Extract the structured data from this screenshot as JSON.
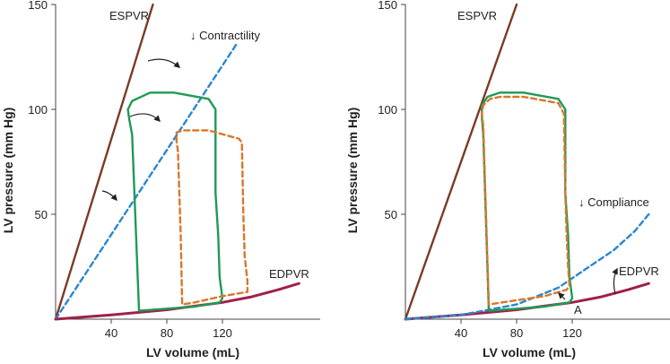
{
  "chart_data": [
    {
      "type": "line",
      "xlabel": "LV volume (mL)",
      "ylabel": "LV pressure (mm Hg)",
      "xticks": [
        40,
        80,
        120
      ],
      "yticks": [
        50,
        100,
        150
      ],
      "xlim": [
        0,
        190
      ],
      "ylim": [
        0,
        150
      ],
      "annotations": [
        "ESPVR",
        "EDPVR",
        "↓ Contractility"
      ],
      "colors": {
        "espvr": "#7a3b28",
        "edpvr": "#a0204a",
        "normal_loop": "#1f9a55",
        "altered_loop": "#d9772a",
        "shifted_relation": "#2a86cf"
      },
      "series": [
        {
          "style": "solid",
          "color_key": "espvr",
          "x": [
            0,
            70
          ],
          "y": [
            0,
            150
          ]
        },
        {
          "style": "dashed",
          "color_key": "shifted_relation",
          "x": [
            0,
            130
          ],
          "y": [
            0,
            131
          ]
        },
        {
          "style": "solid",
          "color_key": "edpvr",
          "x": [
            0,
            40,
            80,
            120,
            140,
            160,
            175
          ],
          "y": [
            0,
            2,
            4.5,
            8,
            10.5,
            14,
            17
          ]
        },
        {
          "style": "solid",
          "color_key": "normal_loop",
          "x": [
            55,
            53,
            52,
            55,
            68,
            85,
            110,
            115,
            115,
            117,
            118,
            120,
            118,
            100,
            80,
            60,
            55
          ],
          "y": [
            88,
            95,
            100,
            104,
            108,
            108,
            105,
            100,
            60,
            40,
            20,
            10,
            8,
            6,
            5,
            4,
            88
          ]
        },
        {
          "style": "dashed",
          "color_key": "altered_loop",
          "x": [
            88,
            87,
            87,
            92,
            110,
            132,
            134,
            135,
            136,
            138,
            138,
            120,
            100,
            91,
            90,
            88
          ],
          "y": [
            80,
            85,
            89,
            90,
            90,
            86,
            84,
            50,
            30,
            18,
            13,
            11,
            8,
            7,
            40,
            80
          ]
        }
      ]
    },
    {
      "type": "line",
      "xlabel": "LV volume (mL)",
      "ylabel": "LV pressure (mm Hg)",
      "xticks": [
        40,
        80,
        120
      ],
      "yticks": [
        50,
        100,
        150
      ],
      "xlim": [
        0,
        190
      ],
      "ylim": [
        0,
        150
      ],
      "annotations": [
        "ESPVR",
        "↓ Compliance",
        "EDPVR",
        "A"
      ],
      "colors": {
        "espvr": "#7a3b28",
        "edpvr": "#a0204a",
        "normal_loop": "#1f9a55",
        "altered_loop": "#d9772a",
        "shifted_relation": "#2a86cf"
      },
      "series": [
        {
          "style": "solid",
          "color_key": "espvr",
          "x": [
            0,
            80
          ],
          "y": [
            0,
            150
          ]
        },
        {
          "style": "solid",
          "color_key": "edpvr",
          "x": [
            0,
            40,
            80,
            120,
            140,
            160,
            175
          ],
          "y": [
            0,
            2,
            4.5,
            8,
            10.5,
            14,
            17
          ]
        },
        {
          "style": "dashed",
          "color_key": "shifted_relation",
          "x": [
            0,
            40,
            80,
            110,
            130,
            150,
            165,
            175
          ],
          "y": [
            0,
            2,
            7,
            15,
            24,
            33,
            42,
            50
          ]
        },
        {
          "style": "solid",
          "color_key": "normal_loop",
          "x": [
            56,
            55,
            55,
            59,
            68,
            85,
            110,
            115,
            115,
            117,
            118,
            120,
            118,
            100,
            80,
            60,
            56
          ],
          "y": [
            88,
            96,
            102,
            106,
            108,
            108,
            105,
            100,
            60,
            40,
            20,
            10,
            8,
            6,
            5,
            4,
            88
          ]
        },
        {
          "style": "dashed",
          "color_key": "altered_loop",
          "x": [
            56,
            55,
            56,
            61,
            68,
            85,
            110,
            114,
            115,
            116,
            117,
            118,
            116,
            100,
            80,
            60,
            56
          ],
          "y": [
            92,
            98,
            102,
            105,
            106,
            106,
            103,
            98,
            60,
            40,
            25,
            16,
            14,
            11,
            9,
            7,
            92
          ]
        }
      ]
    }
  ]
}
